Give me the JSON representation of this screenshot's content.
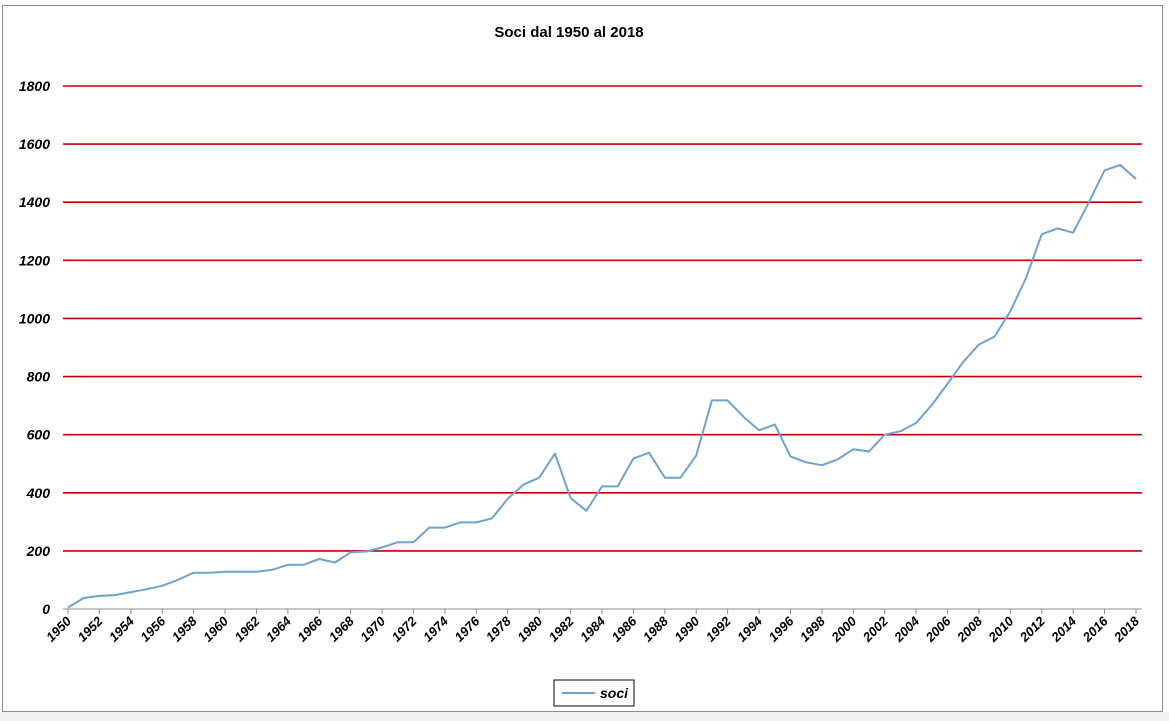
{
  "chart_data": {
    "type": "line",
    "title": "Soci dal 1950 al 2018",
    "xlabel": "",
    "ylabel": "",
    "ylim": [
      0,
      1800
    ],
    "yticks": [
      0,
      200,
      400,
      600,
      800,
      1000,
      1200,
      1400,
      1600,
      1800
    ],
    "xticks": [
      1950,
      1952,
      1954,
      1956,
      1958,
      1960,
      1962,
      1964,
      1966,
      1968,
      1970,
      1972,
      1974,
      1976,
      1978,
      1980,
      1982,
      1984,
      1986,
      1988,
      1990,
      1992,
      1994,
      1996,
      1998,
      2000,
      2002,
      2004,
      2006,
      2008,
      2010,
      2012,
      2014,
      2016,
      2018
    ],
    "grid": true,
    "legend": "bottom-center",
    "colors": {
      "series": "#6fa2d0",
      "grid": "#c00000"
    },
    "x": [
      1950,
      1951,
      1952,
      1953,
      1954,
      1955,
      1956,
      1957,
      1958,
      1959,
      1960,
      1961,
      1962,
      1963,
      1964,
      1965,
      1966,
      1967,
      1968,
      1969,
      1970,
      1971,
      1972,
      1973,
      1974,
      1975,
      1976,
      1977,
      1978,
      1979,
      1980,
      1981,
      1982,
      1983,
      1984,
      1985,
      1986,
      1987,
      1988,
      1989,
      1990,
      1991,
      1992,
      1993,
      1994,
      1995,
      1996,
      1997,
      1998,
      1999,
      2000,
      2001,
      2002,
      2003,
      2004,
      2005,
      2006,
      2007,
      2008,
      2009,
      2010,
      2011,
      2012,
      2013,
      2014,
      2015,
      2016,
      2017,
      2018
    ],
    "series": [
      {
        "name": "soci",
        "values": [
          5,
          38,
          45,
          48,
          58,
          68,
          80,
          100,
          125,
          125,
          128,
          128,
          128,
          135,
          152,
          152,
          172,
          160,
          195,
          198,
          212,
          230,
          230,
          280,
          280,
          298,
          298,
          312,
          380,
          428,
          452,
          535,
          382,
          338,
          422,
          422,
          518,
          538,
          452,
          452,
          528,
          718,
          718,
          662,
          615,
          635,
          525,
          505,
          495,
          515,
          550,
          542,
          600,
          612,
          640,
          702,
          775,
          850,
          910,
          938,
          1025,
          1140,
          1290,
          1310,
          1295,
          1400,
          1510,
          1528,
          1480
        ]
      }
    ]
  }
}
